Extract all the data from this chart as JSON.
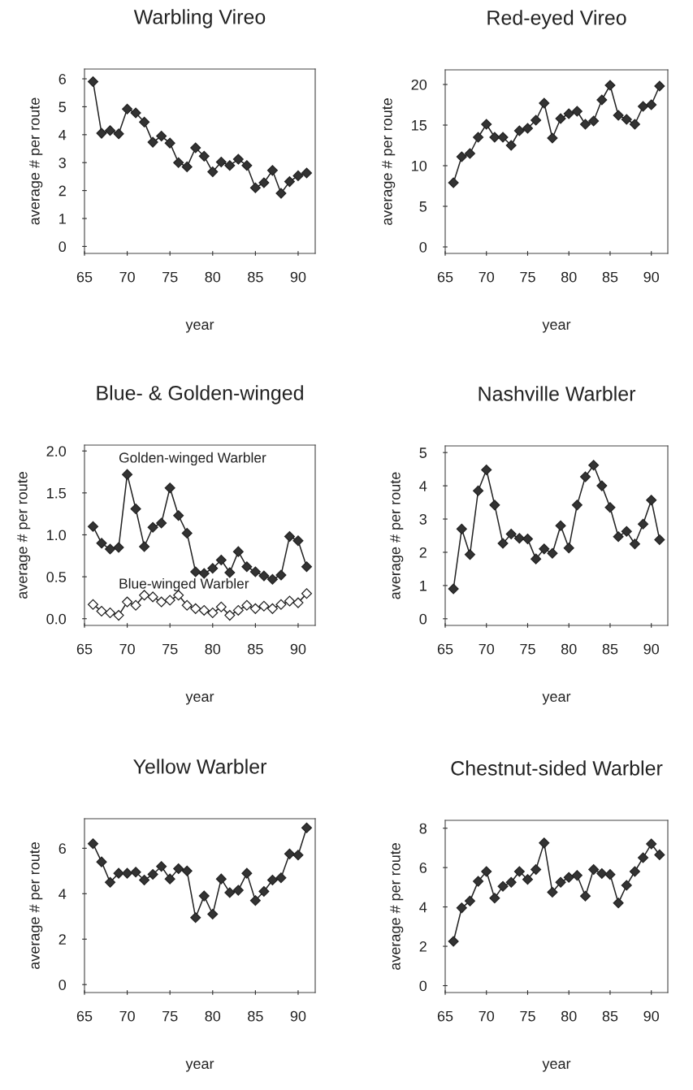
{
  "chart_data": [
    {
      "type": "line",
      "title": "Warbling Vireo",
      "xlabel": "year",
      "ylabel": "average # per route",
      "marker": "diamond",
      "xlim": [
        65,
        92
      ],
      "xticks": [
        65,
        70,
        75,
        80,
        85,
        90
      ],
      "ylim": [
        -0.25,
        6.35
      ],
      "yticks": [
        0,
        1,
        2,
        3,
        4,
        5,
        6
      ],
      "x": [
        66,
        67,
        68,
        69,
        70,
        71,
        72,
        73,
        74,
        75,
        76,
        77,
        78,
        79,
        80,
        81,
        82,
        83,
        84,
        85,
        86,
        87,
        88,
        89,
        90,
        91
      ],
      "series": [
        {
          "color": "#333333",
          "values": [
            5.9,
            4.05,
            4.15,
            4.03,
            4.92,
            4.78,
            4.45,
            3.73,
            3.95,
            3.7,
            3.0,
            2.85,
            3.53,
            3.23,
            2.67,
            3.02,
            2.9,
            3.12,
            2.9,
            2.1,
            2.28,
            2.72,
            1.9,
            2.32,
            2.53,
            2.63
          ]
        }
      ]
    },
    {
      "type": "line",
      "title": "Red-eyed Vireo",
      "xlabel": "year",
      "ylabel": "average # per route",
      "marker": "diamond",
      "xlim": [
        65,
        92
      ],
      "xticks": [
        65,
        70,
        75,
        80,
        85,
        90
      ],
      "ylim": [
        -0.8,
        21.8
      ],
      "yticks": [
        0,
        5,
        10,
        15,
        20
      ],
      "x": [
        66,
        67,
        68,
        69,
        70,
        71,
        72,
        73,
        74,
        75,
        76,
        77,
        78,
        79,
        80,
        81,
        82,
        83,
        84,
        85,
        86,
        87,
        88,
        89,
        90,
        91
      ],
      "series": [
        {
          "color": "#333333",
          "values": [
            7.9,
            11.1,
            11.5,
            13.5,
            15.1,
            13.5,
            13.5,
            12.5,
            14.3,
            14.6,
            15.6,
            17.7,
            13.4,
            15.8,
            16.4,
            16.7,
            15.1,
            15.5,
            18.1,
            19.9,
            16.2,
            15.7,
            15.1,
            17.3,
            17.5,
            19.8
          ]
        }
      ]
    },
    {
      "type": "line",
      "title": "Blue- & Golden-winged",
      "xlabel": "year",
      "ylabel": "average # per route",
      "marker": "diamond",
      "xlim": [
        65,
        92
      ],
      "xticks": [
        65,
        70,
        75,
        80,
        85,
        90
      ],
      "ylim": [
        -0.08,
        2.07
      ],
      "yticks": [
        {
          "value": 0,
          "label": "0.0"
        },
        0.5,
        {
          "value": 1,
          "label": "1.0"
        },
        1.5,
        {
          "value": 2,
          "label": "2.0"
        }
      ],
      "x": [
        66,
        67,
        68,
        69,
        70,
        71,
        72,
        73,
        74,
        75,
        76,
        77,
        78,
        79,
        80,
        81,
        82,
        83,
        84,
        85,
        86,
        87,
        88,
        89,
        90,
        91
      ],
      "series": [
        {
          "name": "Golden-winged Warbler",
          "color": "#333333",
          "values": [
            1.1,
            0.9,
            0.83,
            0.85,
            1.72,
            1.31,
            0.86,
            1.09,
            1.14,
            1.56,
            1.23,
            1.02,
            0.56,
            0.54,
            0.6,
            0.7,
            0.55,
            0.8,
            0.62,
            0.56,
            0.51,
            0.47,
            0.52,
            0.98,
            0.93,
            0.62
          ]
        },
        {
          "name": "Blue-winged Warbler",
          "color": "#ffffff",
          "values": [
            0.17,
            0.09,
            0.07,
            0.04,
            0.2,
            0.16,
            0.28,
            0.26,
            0.2,
            0.22,
            0.28,
            0.16,
            0.12,
            0.1,
            0.07,
            0.14,
            0.04,
            0.1,
            0.16,
            0.12,
            0.15,
            0.12,
            0.17,
            0.21,
            0.19,
            0.3
          ]
        }
      ]
    },
    {
      "type": "line",
      "title": "Nashville Warbler",
      "xlabel": "year",
      "ylabel": "average # per route",
      "marker": "diamond",
      "xlim": [
        65,
        92
      ],
      "xticks": [
        65,
        70,
        75,
        80,
        85,
        90
      ],
      "ylim": [
        -0.2,
        5.2
      ],
      "yticks": [
        0,
        1,
        2,
        3,
        4,
        5
      ],
      "x": [
        66,
        67,
        68,
        69,
        70,
        71,
        72,
        73,
        74,
        75,
        76,
        77,
        78,
        79,
        80,
        81,
        82,
        83,
        84,
        85,
        86,
        87,
        88,
        89,
        90,
        91
      ],
      "series": [
        {
          "color": "#333333",
          "values": [
            0.9,
            2.7,
            1.93,
            3.85,
            4.48,
            3.42,
            2.27,
            2.55,
            2.42,
            2.4,
            1.8,
            2.1,
            1.97,
            2.8,
            2.13,
            3.42,
            4.27,
            4.62,
            4.0,
            3.35,
            2.47,
            2.63,
            2.25,
            2.85,
            3.57,
            2.38
          ]
        }
      ]
    },
    {
      "type": "line",
      "title": "Yellow Warbler",
      "xlabel": "year",
      "ylabel": "average # per route",
      "marker": "diamond",
      "xlim": [
        65,
        92
      ],
      "xticks": [
        65,
        70,
        75,
        80,
        85,
        90
      ],
      "ylim": [
        -0.35,
        7.3
      ],
      "yticks": [
        0,
        2,
        4,
        6
      ],
      "x": [
        66,
        67,
        68,
        69,
        70,
        71,
        72,
        73,
        74,
        75,
        76,
        77,
        78,
        79,
        80,
        81,
        82,
        83,
        84,
        85,
        86,
        87,
        88,
        89,
        90,
        91
      ],
      "series": [
        {
          "color": "#333333",
          "values": [
            6.2,
            5.4,
            4.5,
            4.9,
            4.9,
            4.95,
            4.6,
            4.85,
            5.2,
            4.65,
            5.1,
            5.0,
            2.95,
            3.9,
            3.1,
            4.65,
            4.05,
            4.15,
            4.9,
            3.7,
            4.1,
            4.6,
            4.7,
            5.75,
            5.7,
            6.9
          ]
        }
      ]
    },
    {
      "type": "line",
      "title": "Chestnut-sided Warbler",
      "xlabel": "year",
      "ylabel": "average # per route",
      "marker": "diamond",
      "xlim": [
        65,
        92
      ],
      "xticks": [
        65,
        70,
        75,
        80,
        85,
        90
      ],
      "ylim": [
        -0.35,
        8.4
      ],
      "yticks": [
        0,
        2,
        4,
        6,
        8
      ],
      "x": [
        66,
        67,
        68,
        69,
        70,
        71,
        72,
        73,
        74,
        75,
        76,
        77,
        78,
        79,
        80,
        81,
        82,
        83,
        84,
        85,
        86,
        87,
        88,
        89,
        90,
        91
      ],
      "series": [
        {
          "color": "#333333",
          "values": [
            2.25,
            3.95,
            4.3,
            5.3,
            5.8,
            4.45,
            5.05,
            5.25,
            5.8,
            5.4,
            5.9,
            7.25,
            4.75,
            5.25,
            5.5,
            5.6,
            4.55,
            5.9,
            5.7,
            5.65,
            4.2,
            5.1,
            5.8,
            6.5,
            7.2,
            6.65
          ]
        }
      ]
    }
  ]
}
